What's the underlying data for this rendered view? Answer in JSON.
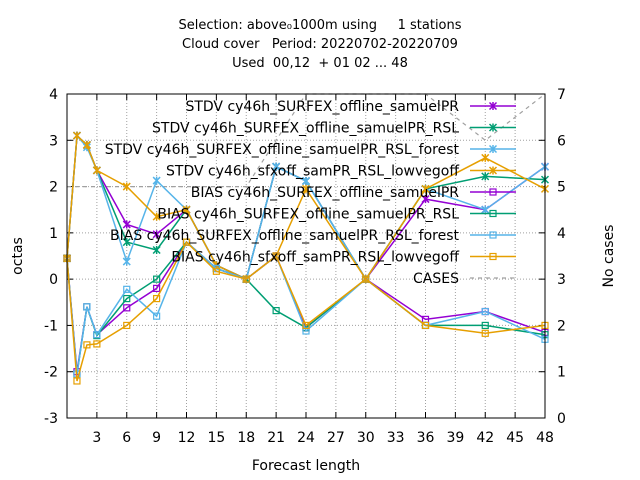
{
  "chart_data": {
    "type": "line",
    "title": [
      "Selection: above₀1000m using     1 stations",
      "Cloud cover   Period: 20220702-20220709",
      "Used  00,12  + 01 02 ... 48"
    ],
    "xlabel": "Forecast length",
    "ylabel": "octas",
    "y2label": "No cases",
    "xlim": [
      0,
      48
    ],
    "ylim": [
      -3,
      4
    ],
    "y2lim": [
      0,
      7
    ],
    "xticks": [
      3,
      6,
      9,
      12,
      15,
      18,
      21,
      24,
      27,
      30,
      33,
      36,
      39,
      42,
      45,
      48
    ],
    "yticks": [
      -3,
      -2,
      -1,
      0,
      1,
      2,
      3,
      4
    ],
    "y2ticks": [
      0,
      1,
      2,
      3,
      4,
      5,
      6,
      7
    ],
    "grid": true,
    "legend_position": "top-right",
    "series": [
      {
        "name": "STDV cy46h_SURFEX_offline_samuelPR",
        "color": "#9400d3",
        "marker": "x",
        "axis": "y",
        "x": [
          0,
          1,
          2,
          3,
          6,
          9,
          12,
          15,
          18,
          21,
          24,
          30,
          36,
          42,
          48
        ],
        "y": [
          0.45,
          3.1,
          2.9,
          2.35,
          1.18,
          0.97,
          1.5,
          0.3,
          0.0,
          2.43,
          2.12,
          0.0,
          1.73,
          1.5,
          2.43
        ]
      },
      {
        "name": "STDV cy46h_SURFEX_offline_samuelPR_RSL",
        "color": "#009e73",
        "marker": "x",
        "axis": "y",
        "x": [
          0,
          1,
          2,
          3,
          6,
          9,
          12,
          15,
          18,
          21,
          24,
          30,
          36,
          42,
          48
        ],
        "y": [
          0.45,
          3.1,
          2.9,
          2.35,
          0.8,
          0.63,
          1.5,
          0.3,
          0.0,
          2.43,
          2.12,
          0.0,
          1.95,
          2.22,
          2.15
        ]
      },
      {
        "name": "STDV cy46h_SURFEX_offline_samuelPR_RSL_forest",
        "color": "#56b4e9",
        "marker": "x",
        "axis": "y",
        "x": [
          0,
          1,
          2,
          3,
          6,
          9,
          12,
          15,
          18,
          21,
          24,
          30,
          36,
          42,
          48
        ],
        "y": [
          0.45,
          3.1,
          2.85,
          2.35,
          0.38,
          2.13,
          1.5,
          0.3,
          0.0,
          2.43,
          2.12,
          0.0,
          1.95,
          1.5,
          2.43
        ]
      },
      {
        "name": "STDV cy46h_sfxoff_samPR_RSL_lowvegoff",
        "color": "#e69f00",
        "marker": "x",
        "axis": "y",
        "x": [
          0,
          1,
          2,
          3,
          6,
          9,
          12,
          15,
          18,
          21,
          24,
          30,
          36,
          42,
          48
        ],
        "y": [
          0.45,
          3.1,
          2.9,
          2.35,
          2.0,
          1.35,
          1.5,
          0.3,
          0.0,
          0.5,
          1.95,
          0.0,
          1.95,
          2.62,
          1.95
        ]
      },
      {
        "name": "BIAS cy46h_SURFEX_offline_samuelPR",
        "color": "#9400d3",
        "marker": "square",
        "axis": "y",
        "x": [
          0,
          1,
          2,
          3,
          6,
          9,
          12,
          15,
          18,
          21,
          24,
          30,
          36,
          42,
          48
        ],
        "y": [
          0.45,
          -2.0,
          -0.6,
          -1.2,
          -0.62,
          -0.2,
          0.8,
          0.23,
          0.0,
          0.5,
          -1.05,
          0.0,
          -0.87,
          -0.7,
          -1.15
        ]
      },
      {
        "name": "BIAS cy46h_SURFEX_offline_samuelPR_RSL",
        "color": "#009e73",
        "marker": "square",
        "axis": "y",
        "x": [
          0,
          1,
          2,
          3,
          6,
          9,
          12,
          15,
          18,
          21,
          24,
          30,
          36,
          42,
          48
        ],
        "y": [
          0.45,
          -2.05,
          -0.6,
          -1.22,
          -0.42,
          0.0,
          0.8,
          0.23,
          0.0,
          -0.68,
          -1.05,
          0.0,
          -1.0,
          -1.0,
          -1.2
        ]
      },
      {
        "name": "BIAS cy46h_SURFEX_offline_samuelPR_RSL_forest",
        "color": "#56b4e9",
        "marker": "square",
        "axis": "y",
        "x": [
          0,
          1,
          2,
          3,
          6,
          9,
          12,
          15,
          18,
          21,
          24,
          30,
          36,
          42,
          48
        ],
        "y": [
          0.45,
          -2.05,
          -0.6,
          -1.2,
          -0.22,
          -0.8,
          0.8,
          0.23,
          0.0,
          0.5,
          -1.12,
          0.0,
          -1.0,
          -0.7,
          -1.3
        ]
      },
      {
        "name": "BIAS cy46h_sfxoff_samPR_RSL_lowvegoff",
        "color": "#e69f00",
        "marker": "square",
        "axis": "y",
        "x": [
          0,
          1,
          2,
          3,
          6,
          9,
          12,
          15,
          18,
          21,
          24,
          30,
          36,
          42,
          48
        ],
        "y": [
          0.45,
          -2.2,
          -1.42,
          -1.4,
          -1.0,
          -0.42,
          0.8,
          0.17,
          0.0,
          0.5,
          -1.0,
          0.0,
          -1.0,
          -1.17,
          -1.0
        ]
      },
      {
        "name": "CASES",
        "color": "#a0a0a0",
        "marker": "none",
        "dashed": true,
        "axis": "y2",
        "x": [
          0,
          1,
          2,
          3,
          6,
          9,
          12,
          15,
          18,
          21,
          24,
          30,
          36,
          42,
          48
        ],
        "y": [
          5,
          5,
          5,
          5,
          5,
          5,
          5,
          5,
          5,
          6,
          7,
          7,
          7,
          6,
          7
        ]
      }
    ]
  }
}
